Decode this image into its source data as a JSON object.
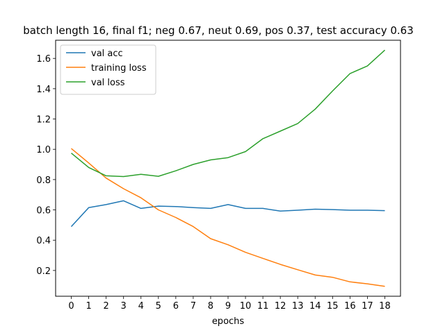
{
  "chart_data": {
    "type": "line",
    "title": "batch length 16, final f1; neg 0.67, neut 0.69, pos 0.37, test accuracy 0.63",
    "xlabel": "epochs",
    "ylabel": "",
    "x": [
      0,
      1,
      2,
      3,
      4,
      5,
      6,
      7,
      8,
      9,
      10,
      11,
      12,
      13,
      14,
      15,
      16,
      17,
      18
    ],
    "xlim": [
      -0.9,
      18.9
    ],
    "ylim": [
      0.03,
      1.72
    ],
    "yticks": [
      0.2,
      0.4,
      0.6,
      0.8,
      1.0,
      1.2,
      1.4,
      1.6
    ],
    "legend_position": "top-left",
    "grid": false,
    "series": [
      {
        "name": "val acc",
        "color": "#1f77b4",
        "values": [
          0.49,
          0.615,
          0.635,
          0.66,
          0.61,
          0.625,
          0.622,
          0.615,
          0.61,
          0.635,
          0.61,
          0.61,
          0.592,
          0.598,
          0.605,
          0.602,
          0.598,
          0.598,
          0.595
        ]
      },
      {
        "name": "training loss",
        "color": "#ff7f0e",
        "values": [
          1.005,
          0.91,
          0.81,
          0.74,
          0.68,
          0.6,
          0.55,
          0.49,
          0.41,
          0.37,
          0.32,
          0.28,
          0.24,
          0.205,
          0.17,
          0.155,
          0.125,
          0.112,
          0.095
        ]
      },
      {
        "name": "val loss",
        "color": "#2ca02c",
        "values": [
          0.975,
          0.88,
          0.825,
          0.82,
          0.835,
          0.822,
          0.858,
          0.9,
          0.93,
          0.945,
          0.985,
          1.07,
          1.12,
          1.17,
          1.265,
          1.385,
          1.5,
          1.55,
          1.655
        ]
      }
    ]
  }
}
